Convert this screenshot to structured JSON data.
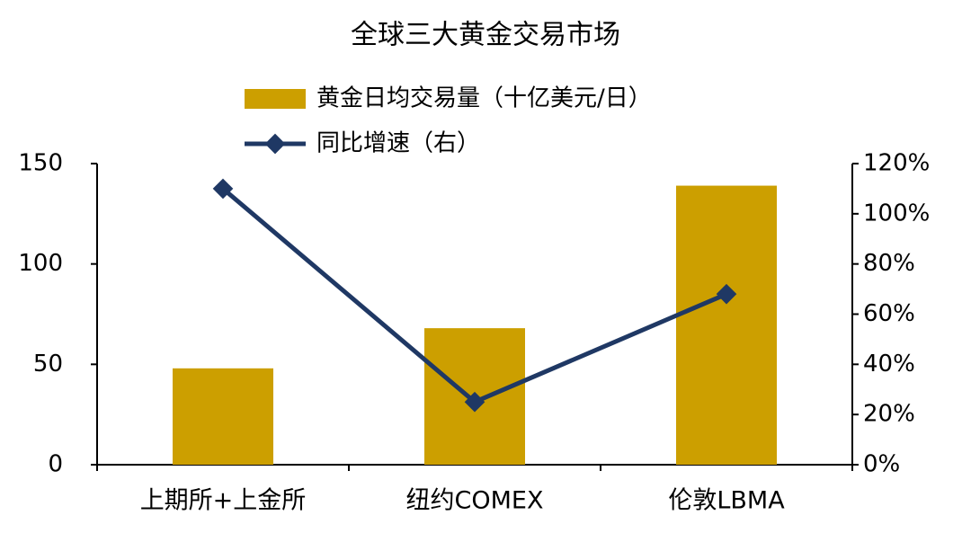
{
  "chart_data": {
    "type": "bar",
    "title": "全球三大黄金交易市场",
    "categories": [
      "上期所+上金所",
      "纽约COMEX",
      "伦敦LBMA"
    ],
    "series": [
      {
        "name": "黄金日均交易量（十亿美元/日）",
        "type": "bar",
        "color": "#cc9f00",
        "values": [
          48,
          68,
          139
        ]
      },
      {
        "name": "同比增速（右）",
        "type": "line",
        "axis": "y2",
        "color": "#1f3864",
        "values": [
          110,
          25,
          68
        ]
      }
    ],
    "ylim": [
      0,
      150
    ],
    "yticks": [
      0,
      50,
      100,
      150
    ],
    "y2lim": [
      0,
      120
    ],
    "y2ticks": [
      {
        "value": 0,
        "label": "0%"
      },
      {
        "value": 20,
        "label": "20%"
      },
      {
        "value": 40,
        "label": "40%"
      },
      {
        "value": 60,
        "label": "60%"
      },
      {
        "value": 80,
        "label": "80%"
      },
      {
        "value": 100,
        "label": "100%"
      },
      {
        "value": 120,
        "label": "120%"
      }
    ],
    "grid": false
  }
}
